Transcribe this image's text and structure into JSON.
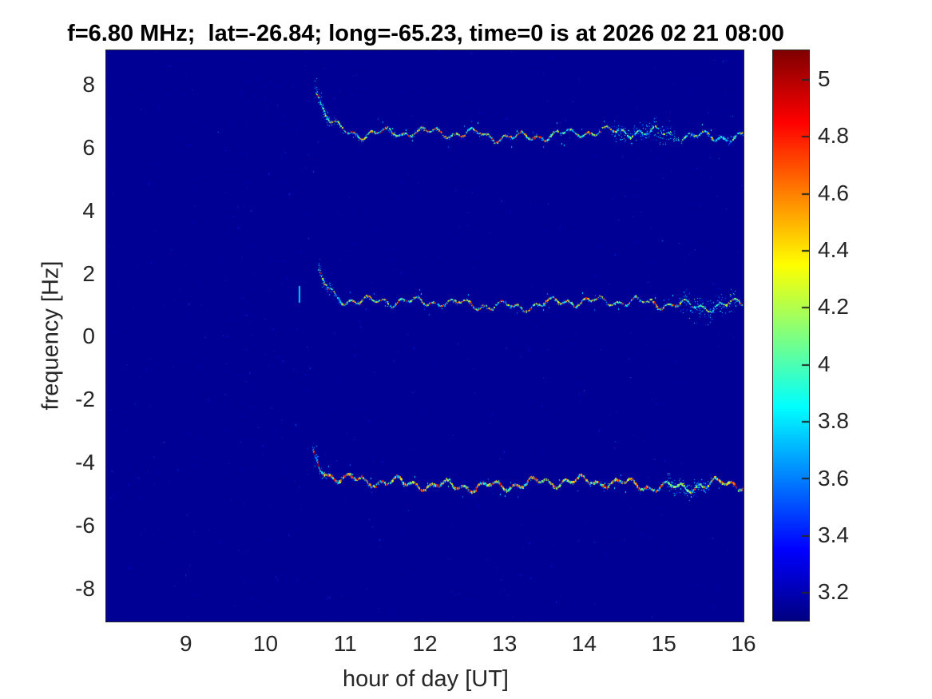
{
  "title": "f=6.80 MHz;  lat=-26.84; long=-65.23, time=0 is at 2026 02 21 08:00",
  "chart_data": {
    "type": "heatmap",
    "subtype": "doppler-spectrogram",
    "xlabel": "hour of day [UT]",
    "ylabel": "frequency [Hz]",
    "xlim": [
      8,
      16
    ],
    "ylim": [
      -9.05,
      9.1
    ],
    "xticks": [
      9,
      10,
      11,
      12,
      13,
      14,
      15,
      16
    ],
    "yticks": [
      8,
      6,
      4,
      2,
      0,
      -2,
      -4,
      -6,
      -8
    ],
    "colorbar": {
      "colormap": "jet",
      "clim": [
        3.1,
        5.1
      ],
      "ticks": [
        5,
        4.8,
        4.6,
        4.4,
        4.2,
        4,
        3.8,
        3.6,
        3.4,
        3.2
      ]
    },
    "background_value": 3.14,
    "noise_speckles": {
      "count": 2400,
      "value_range": [
        3.2,
        3.6
      ],
      "pre_onset_band": {
        "from_hour": 9.4,
        "to_hour": 10.55,
        "extra_count": 420
      }
    },
    "traces": [
      {
        "label": "upper sideband trace",
        "start_hour": 10.63,
        "end_hour": 16.0,
        "onset_freq_hz": 7.95,
        "onset_scatter_max_hz": 8.3,
        "steady_freq_hz": 6.42,
        "wobble_amp_hz": 0.17,
        "core_thickness_px": 2,
        "hot_fraction": 0.38,
        "fade_from_hour": 14.4,
        "diffuse_cloud": {
          "from_hour": 14.35,
          "to_hour": 15.15,
          "spread_hz": 0.4
        }
      },
      {
        "label": "carrier trace",
        "start_hour": 10.67,
        "end_hour": 16.0,
        "onset_freq_hz": 2.0,
        "onset_scatter_max_hz": 2.3,
        "steady_freq_hz": 1.02,
        "wobble_amp_hz": 0.16,
        "core_thickness_px": 2,
        "hot_fraction": 0.42,
        "fade_from_hour": null,
        "diffuse_cloud": {
          "from_hour": 15.2,
          "to_hour": 15.9,
          "spread_hz": 0.5
        }
      },
      {
        "label": "lower sideband trace",
        "start_hour": 10.6,
        "end_hour": 16.0,
        "onset_freq_hz": -3.85,
        "onset_scatter_max_hz": -3.55,
        "steady_freq_hz": -4.72,
        "wobble_amp_hz": 0.18,
        "core_thickness_px": 3,
        "hot_fraction": 0.5,
        "fade_from_hour": null,
        "diffuse_cloud": {
          "from_hour": 15.05,
          "to_hour": 15.6,
          "spread_hz": 0.35
        }
      }
    ],
    "artifacts": [
      {
        "type": "vertical-dash",
        "hour": 10.42,
        "freq_from_hz": 1.05,
        "freq_to_hz": 1.6,
        "value": 3.8
      }
    ]
  },
  "colors": {
    "figure_background": "#ffffff",
    "axis": "#262626",
    "title_text": "#000000",
    "plot_background_deep_blue": "#000094",
    "colorbar_top_dark_red": "#800000"
  }
}
